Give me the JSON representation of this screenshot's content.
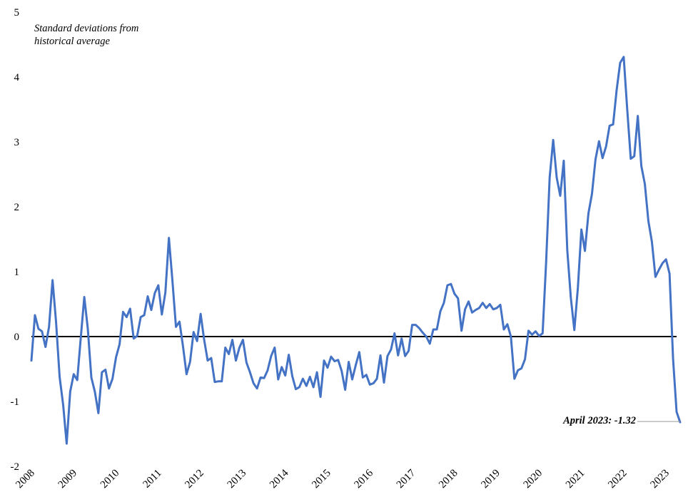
{
  "chart_data": {
    "type": "line",
    "title": "",
    "ylabel_lines": [
      "Standard deviations from",
      "historical average"
    ],
    "xlabel": "",
    "ylim": [
      -2,
      5
    ],
    "yticks": [
      "5",
      "4",
      "3",
      "2",
      "1",
      "0",
      "-1",
      "-2"
    ],
    "xticks": [
      "2008",
      "2009",
      "2010",
      "2011",
      "2012",
      "2013",
      "2014",
      "2015",
      "2016",
      "2017",
      "2018",
      "2019",
      "2020",
      "2021",
      "2022",
      "2023"
    ],
    "zero_line": true,
    "grid": false,
    "series_color": "#4472C4",
    "annotation": {
      "text": "April 2023: -1.32",
      "year": 2023.25,
      "value": -1.32
    },
    "start_year": 2008,
    "series": [
      {
        "values": [
          -0.37,
          0.33,
          0.12,
          0.08,
          -0.16,
          0.15,
          0.87,
          0.22,
          -0.62,
          -1.05,
          -1.65,
          -0.85,
          -0.58,
          -0.67,
          -0.02,
          0.61,
          0.12,
          -0.63,
          -0.85,
          -1.18,
          -0.55,
          -0.51,
          -0.8,
          -0.65,
          -0.32,
          -0.12,
          0.38,
          0.3,
          0.43,
          -0.03,
          0.01,
          0.3,
          0.33,
          0.62,
          0.41,
          0.67,
          0.79,
          0.34,
          0.68,
          1.52,
          0.86,
          0.15,
          0.23,
          -0.15,
          -0.58,
          -0.39,
          0.07,
          -0.07,
          0.35,
          -0.05,
          -0.37,
          -0.33,
          -0.7,
          -0.69,
          -0.69,
          -0.17,
          -0.27,
          -0.05,
          -0.37,
          -0.17,
          -0.05,
          -0.4,
          -0.55,
          -0.72,
          -0.8,
          -0.63,
          -0.64,
          -0.52,
          -0.3,
          -0.17,
          -0.66,
          -0.47,
          -0.6,
          -0.28,
          -0.61,
          -0.81,
          -0.78,
          -0.65,
          -0.76,
          -0.62,
          -0.78,
          -0.55,
          -0.93,
          -0.37,
          -0.48,
          -0.31,
          -0.38,
          -0.36,
          -0.53,
          -0.82,
          -0.39,
          -0.66,
          -0.44,
          -0.24,
          -0.63,
          -0.59,
          -0.74,
          -0.72,
          -0.65,
          -0.29,
          -0.71,
          -0.3,
          -0.2,
          0.05,
          -0.29,
          -0.03,
          -0.3,
          -0.22,
          0.18,
          0.18,
          0.13,
          0.06,
          0.0,
          -0.11,
          0.11,
          0.11,
          0.39,
          0.52,
          0.79,
          0.81,
          0.66,
          0.59,
          0.09,
          0.42,
          0.54,
          0.37,
          0.41,
          0.44,
          0.52,
          0.44,
          0.5,
          0.42,
          0.44,
          0.49,
          0.11,
          0.19,
          0.0,
          -0.65,
          -0.52,
          -0.49,
          -0.35,
          0.09,
          0.03,
          0.08,
          0.01,
          0.05,
          1.15,
          2.45,
          3.03,
          2.45,
          2.17,
          2.71,
          1.33,
          0.6,
          0.1,
          0.75,
          1.65,
          1.32,
          1.9,
          2.2,
          2.73,
          3.01,
          2.75,
          2.93,
          3.25,
          3.27,
          3.8,
          4.22,
          4.31,
          3.5,
          2.74,
          2.78,
          3.4,
          2.63,
          2.35,
          1.78,
          1.46,
          0.92,
          1.03,
          1.13,
          1.19,
          0.97,
          -0.34,
          -1.16,
          -1.32
        ]
      }
    ]
  }
}
